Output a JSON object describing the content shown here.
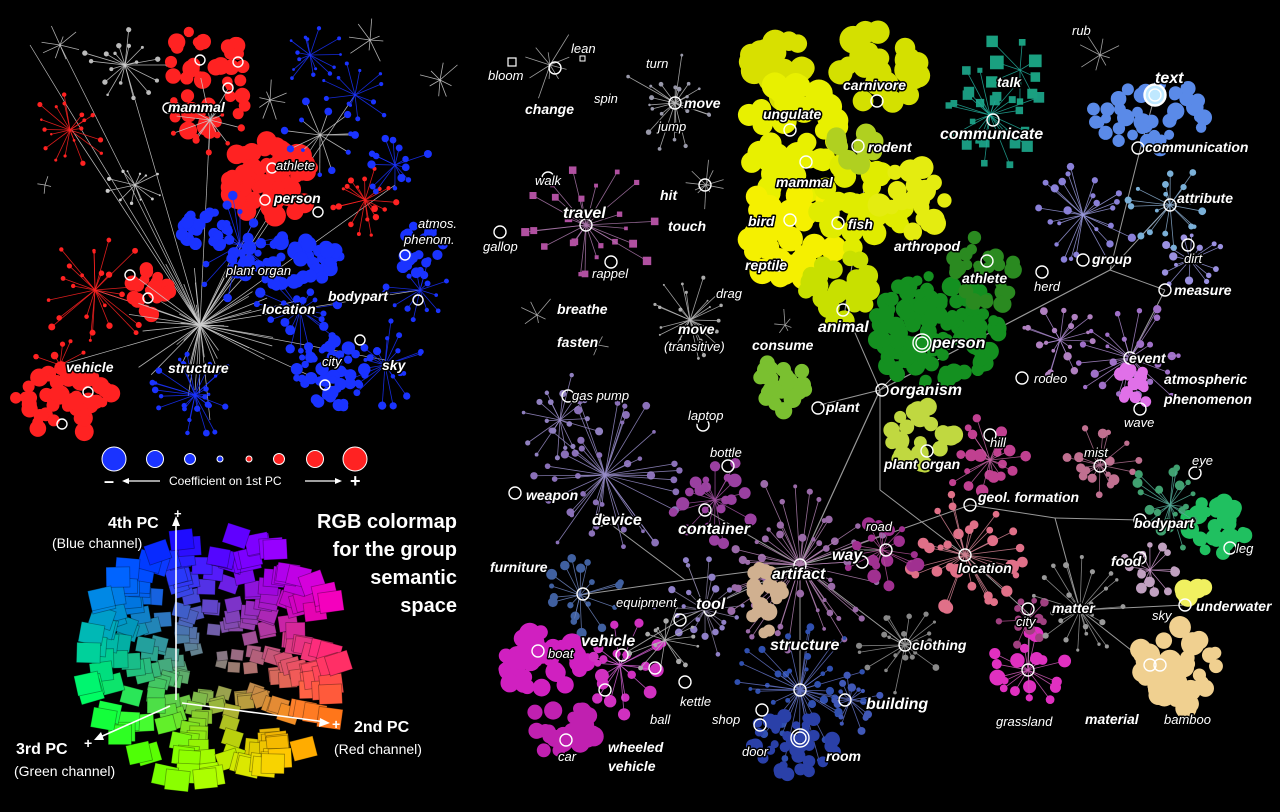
{
  "colors": {
    "background": "#000000",
    "negative": "#1a33ff",
    "positive": "#ff2222",
    "edge": "#cfcfcf"
  },
  "pc1_map": {
    "labels": {
      "mammal": "mammal",
      "athlete": "athlete",
      "person": "person",
      "atmos": "atmos.",
      "phenom": "phenom.",
      "plant_organ": "plant organ",
      "bodypart": "bodypart",
      "location": "location",
      "vehicle": "vehicle",
      "structure": "structure",
      "city": "city",
      "sky": "sky"
    }
  },
  "legend": {
    "minus": "–",
    "plus": "+",
    "caption": "Coefficient on 1st PC"
  },
  "colormap": {
    "title_lines": [
      "RGB colormap",
      "for the group",
      "semantic",
      "space"
    ],
    "pc4_label": "4th PC",
    "pc4_channel": "(Blue channel)",
    "pc2_label": "2nd PC",
    "pc2_channel": "(Red channel)",
    "pc3_label": "3rd PC",
    "pc3_channel": "(Green channel)",
    "plus": "+"
  },
  "main_map": {
    "labels": {
      "lean": "lean",
      "bloom": "bloom",
      "change": "change",
      "turn": "turn",
      "spin": "spin",
      "move": "move",
      "jump": "jump",
      "walk": "walk",
      "travel": "travel",
      "hit": "hit",
      "touch": "touch",
      "gallop": "gallop",
      "rappel": "rappel",
      "breathe": "breathe",
      "drag": "drag",
      "fasten": "fasten",
      "move_t1": "move",
      "move_t2": "(transitive)",
      "consume": "consume",
      "ungulate": "ungulate",
      "carnivore": "carnivore",
      "rodent": "rodent",
      "mammal": "mammal",
      "bird": "bird",
      "fish": "fish",
      "reptile": "reptile",
      "arthropod": "arthropod",
      "animal": "animal",
      "athlete": "athlete",
      "person": "person",
      "organism": "organism",
      "plant": "plant",
      "talk": "talk",
      "communicate": "communicate",
      "rub": "rub",
      "text": "text",
      "communication": "communication",
      "attribute": "attribute",
      "group": "group",
      "dirt": "dirt",
      "herd": "herd",
      "measure": "measure",
      "event": "event",
      "rodeo": "rodeo",
      "atmospheric": "atmospheric",
      "phenomenon": "phenomenon",
      "wave": "wave",
      "gas_pump": "gas pump",
      "laptop": "laptop",
      "bottle": "bottle",
      "weapon": "weapon",
      "device": "device",
      "container": "container",
      "hill": "hill",
      "mist": "mist",
      "plant_organ": "plant organ",
      "geol_formation": "geol. formation",
      "eye": "eye",
      "bodypart": "bodypart",
      "leg": "leg",
      "road": "road",
      "way": "way",
      "artifact": "artifact",
      "location": "location",
      "furniture": "furniture",
      "equipment": "equipment",
      "tool": "tool",
      "food": "food",
      "matter": "matter",
      "sky": "sky",
      "underwater": "underwater",
      "city": "city",
      "vehicle": "vehicle",
      "boat": "boat",
      "structure": "structure",
      "clothing": "clothing",
      "kettle": "kettle",
      "building": "building",
      "ball": "ball",
      "shop": "shop",
      "grassland": "grassland",
      "material": "material",
      "bamboo": "bamboo",
      "door": "door",
      "room": "room",
      "car": "car",
      "wheeled": "wheeled",
      "vehicle2": "vehicle"
    }
  }
}
